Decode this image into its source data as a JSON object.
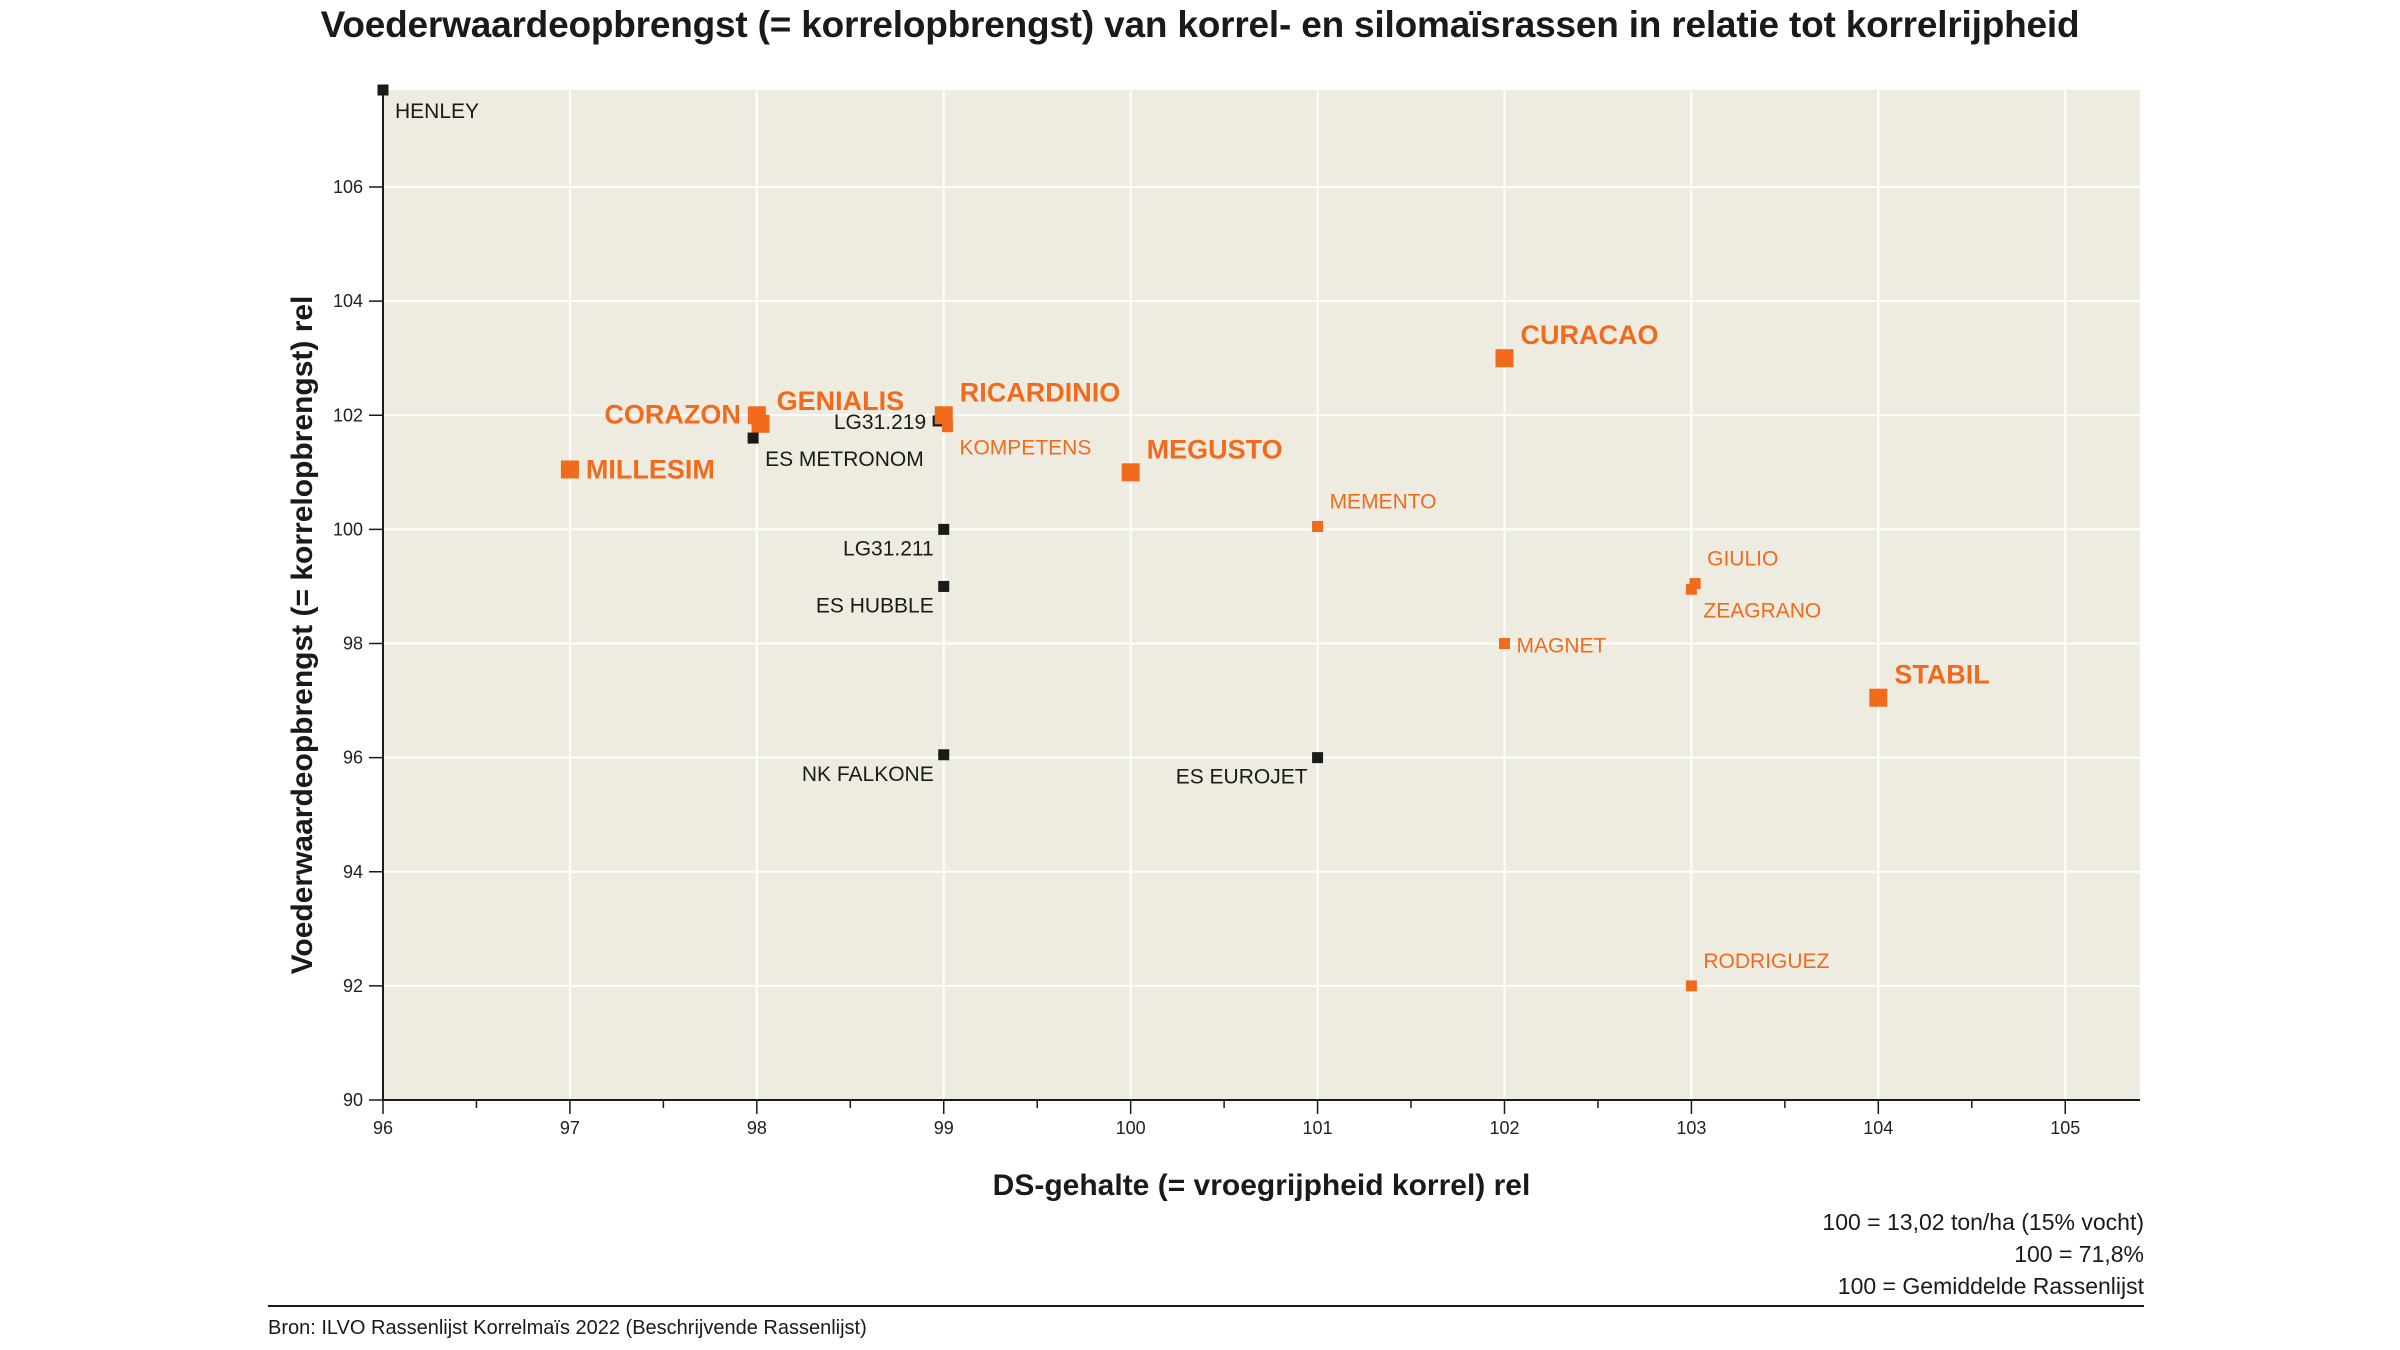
{
  "chart_data": {
    "type": "scatter",
    "title": "Voederwaardeopbrengst (= korrelopbrengst) van korrel- en silomaïsrassen in relatie tot korrelrijpheid",
    "xlabel": "DS-gehalte (= vroegrijpheid korrel) rel",
    "ylabel": "Voederwaardeopbrengst (= korrelopbrengst) rel",
    "xlim": [
      96,
      105.4
    ],
    "ylim": [
      90,
      107.7
    ],
    "xticks": [
      96,
      97,
      98,
      99,
      100,
      101,
      102,
      103,
      104,
      105
    ],
    "yticks": [
      90,
      92,
      94,
      96,
      98,
      100,
      102,
      104,
      106
    ],
    "grid": true,
    "colors": {
      "background": "#eeebe1",
      "highlight": "#f26b1d",
      "other": "#1a1a1a",
      "grid": "#ffffff"
    },
    "points": [
      {
        "name": "HENLEY",
        "x": 96.0,
        "y": 107.7,
        "color": "black",
        "size": "small",
        "label_pos": "below-right"
      },
      {
        "name": "CORAZON",
        "x": 98.0,
        "y": 102.0,
        "color": "orange",
        "size": "large",
        "label_pos": "left"
      },
      {
        "name": "GENIALIS",
        "x": 98.02,
        "y": 101.85,
        "color": "orange",
        "size": "large",
        "label_pos": "above-right"
      },
      {
        "name": "MILLESIM",
        "x": 97.0,
        "y": 101.05,
        "color": "orange",
        "size": "large",
        "label_pos": "right"
      },
      {
        "name": "ES METRONOM",
        "x": 97.98,
        "y": 101.6,
        "color": "black",
        "size": "small",
        "label_pos": "below-right"
      },
      {
        "name": "LG31.219",
        "x": 98.97,
        "y": 101.9,
        "color": "black",
        "size": "small",
        "label_pos": "left"
      },
      {
        "name": "RICARDINIO",
        "x": 99.0,
        "y": 102.0,
        "color": "orange",
        "size": "large",
        "label_pos": "above-right"
      },
      {
        "name": "KOMPETENS",
        "x": 99.02,
        "y": 101.8,
        "color": "orange",
        "size": "small",
        "label_pos": "below-right"
      },
      {
        "name": "MEGUSTO",
        "x": 100.0,
        "y": 101.0,
        "color": "orange",
        "size": "large",
        "label_pos": "above-right"
      },
      {
        "name": "LG31.211",
        "x": 99.0,
        "y": 100.0,
        "color": "black",
        "size": "small",
        "label_pos": "below-left"
      },
      {
        "name": "ES HUBBLE",
        "x": 99.0,
        "y": 99.0,
        "color": "black",
        "size": "small",
        "label_pos": "below-left"
      },
      {
        "name": "NK FALKONE",
        "x": 99.0,
        "y": 96.05,
        "color": "black",
        "size": "small",
        "label_pos": "below-left"
      },
      {
        "name": "MEMENTO",
        "x": 101.0,
        "y": 100.05,
        "color": "orange",
        "size": "small",
        "label_pos": "above-right"
      },
      {
        "name": "ES EUROJET",
        "x": 101.0,
        "y": 96.0,
        "color": "black",
        "size": "small",
        "label_pos": "below-left"
      },
      {
        "name": "CURACAO",
        "x": 102.0,
        "y": 103.0,
        "color": "orange",
        "size": "large",
        "label_pos": "above-right"
      },
      {
        "name": "MAGNET",
        "x": 102.0,
        "y": 98.0,
        "color": "orange",
        "size": "small",
        "label_pos": "right"
      },
      {
        "name": "GIULIO",
        "x": 103.02,
        "y": 99.05,
        "color": "orange",
        "size": "small",
        "label_pos": "above-right"
      },
      {
        "name": "ZEAGRANO",
        "x": 103.0,
        "y": 98.95,
        "color": "orange",
        "size": "small",
        "label_pos": "below-right"
      },
      {
        "name": "STABIL",
        "x": 104.0,
        "y": 97.05,
        "color": "orange",
        "size": "large",
        "label_pos": "above-right"
      },
      {
        "name": "RODRIGUEZ",
        "x": 103.0,
        "y": 92.0,
        "color": "orange",
        "size": "small",
        "label_pos": "above-right"
      }
    ],
    "notes": [
      "100 = 13,02 ton/ha (15% vocht)",
      "100 = 71,8%",
      "100 = Gemiddelde Rassenlijst"
    ],
    "source": "Bron: ILVO Rassenlijst Korrelmaïs 2022 (Beschrijvende Rassenlijst)"
  }
}
